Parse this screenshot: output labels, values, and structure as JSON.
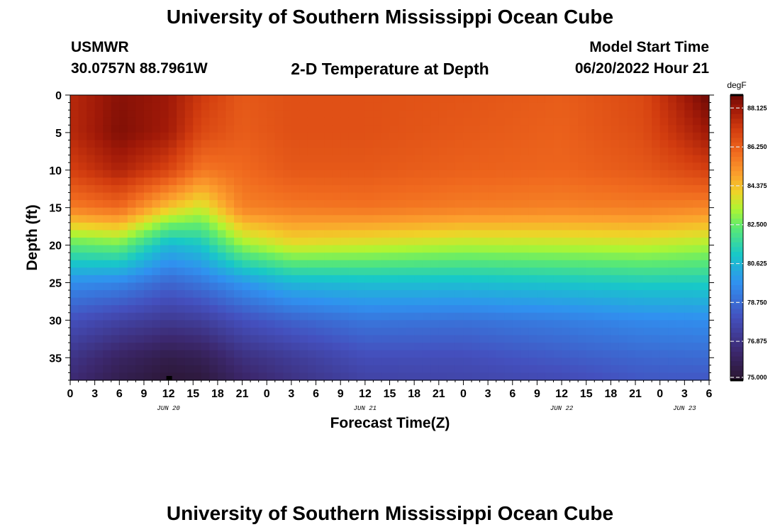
{
  "page_title": "University of Southern Mississippi Ocean Cube",
  "footer_title": "University of Southern Mississippi Ocean Cube",
  "station": {
    "name": "USMWR",
    "coords": "30.0757N  88.7961W"
  },
  "model": {
    "label": "Model Start Time",
    "start": "06/20/2022 Hour 21"
  },
  "chart_data": {
    "type": "heatmap",
    "title": "2-D Temperature at Depth",
    "xlabel": "Forecast Time(Z)",
    "ylabel": "Depth (ft)",
    "x_range_hours": [
      0,
      78
    ],
    "y_range_ft": [
      0,
      38
    ],
    "x_ticks": [
      {
        "hour": 0,
        "label": "0"
      },
      {
        "hour": 3,
        "label": "3"
      },
      {
        "hour": 6,
        "label": "6"
      },
      {
        "hour": 9,
        "label": "9"
      },
      {
        "hour": 12,
        "label": "12"
      },
      {
        "hour": 15,
        "label": "15"
      },
      {
        "hour": 18,
        "label": "18"
      },
      {
        "hour": 21,
        "label": "21"
      },
      {
        "hour": 24,
        "label": "0"
      },
      {
        "hour": 27,
        "label": "3"
      },
      {
        "hour": 30,
        "label": "6"
      },
      {
        "hour": 33,
        "label": "9"
      },
      {
        "hour": 36,
        "label": "12"
      },
      {
        "hour": 39,
        "label": "15"
      },
      {
        "hour": 42,
        "label": "18"
      },
      {
        "hour": 45,
        "label": "21"
      },
      {
        "hour": 48,
        "label": "0"
      },
      {
        "hour": 51,
        "label": "3"
      },
      {
        "hour": 54,
        "label": "6"
      },
      {
        "hour": 57,
        "label": "9"
      },
      {
        "hour": 60,
        "label": "12"
      },
      {
        "hour": 63,
        "label": "15"
      },
      {
        "hour": 66,
        "label": "18"
      },
      {
        "hour": 69,
        "label": "21"
      },
      {
        "hour": 72,
        "label": "0"
      },
      {
        "hour": 75,
        "label": "3"
      },
      {
        "hour": 78,
        "label": "6"
      }
    ],
    "date_labels": [
      {
        "hour": 12,
        "label": "JUN 20"
      },
      {
        "hour": 36,
        "label": "JUN 21"
      },
      {
        "hour": 60,
        "label": "JUN 22"
      },
      {
        "hour": 75,
        "label": "JUN 23"
      }
    ],
    "y_ticks": [
      0,
      5,
      10,
      15,
      20,
      25,
      30,
      35
    ],
    "colorbar": {
      "unit": "degF",
      "min": 75.0,
      "max": 88.75,
      "ticks": [
        "88.125",
        "86.250",
        "84.375",
        "82.500",
        "80.625",
        "78.750",
        "76.875",
        "75.000"
      ]
    },
    "depth_profile_hours": [
      0,
      6,
      12,
      16,
      21,
      27,
      36,
      48,
      60,
      70,
      78
    ],
    "depth_profile_depths": [
      0,
      5,
      10,
      15,
      20,
      25,
      30,
      35,
      38
    ],
    "temperature_profiles_degF": [
      [
        87.6,
        87.6,
        87.0,
        85.6,
        82.3,
        79.6,
        78.0,
        76.9,
        76.5
      ],
      [
        88.4,
        88.5,
        87.8,
        86.0,
        82.6,
        79.4,
        77.5,
        76.1,
        75.7
      ],
      [
        88.1,
        88.0,
        86.9,
        84.3,
        80.6,
        78.6,
        77.1,
        75.6,
        75.2
      ],
      [
        87.2,
        86.8,
        85.7,
        83.6,
        81.0,
        79.0,
        77.3,
        75.8,
        75.3
      ],
      [
        86.4,
        86.3,
        86.0,
        85.5,
        83.0,
        79.8,
        78.0,
        76.7,
        76.2
      ],
      [
        86.6,
        86.6,
        86.4,
        85.7,
        83.8,
        80.6,
        78.5,
        77.2,
        76.8
      ],
      [
        86.6,
        86.6,
        86.4,
        85.8,
        83.6,
        80.8,
        79.0,
        77.9,
        77.5
      ],
      [
        86.5,
        86.4,
        86.2,
        85.6,
        83.3,
        80.8,
        78.9,
        77.9,
        77.6
      ],
      [
        86.3,
        86.2,
        86.1,
        85.5,
        83.4,
        81.0,
        79.2,
        78.3,
        77.8
      ],
      [
        86.8,
        86.7,
        86.4,
        85.6,
        83.5,
        81.2,
        79.5,
        78.6,
        78.2
      ],
      [
        88.8,
        88.1,
        87.0,
        85.4,
        83.2,
        81.2,
        79.6,
        78.7,
        78.2
      ]
    ]
  }
}
